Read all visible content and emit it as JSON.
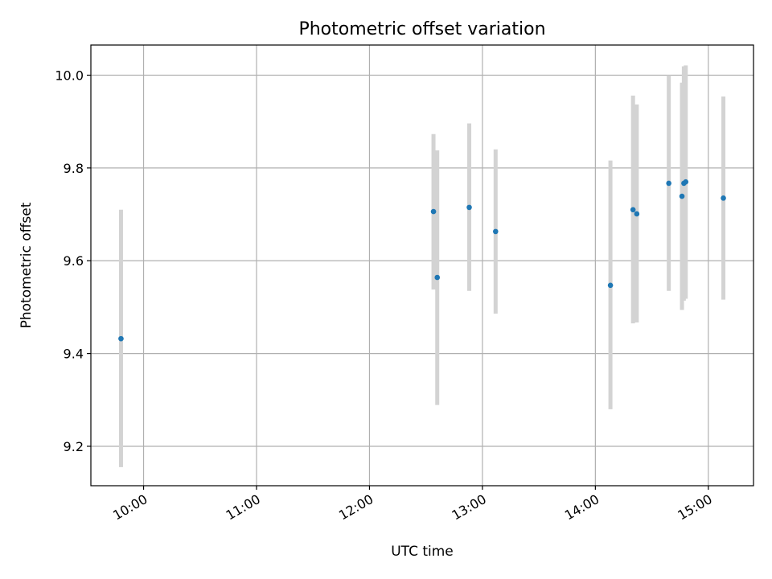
{
  "chart_data": {
    "type": "scatter",
    "title": "Photometric offset variation",
    "xlabel": "UTC time",
    "ylabel": "Photometric offset",
    "x_axis": "time",
    "xlim": [
      "09:32",
      "15:24"
    ],
    "ylim": [
      9.115,
      10.065
    ],
    "x_ticks": [
      "10:00",
      "11:00",
      "12:00",
      "13:00",
      "14:00",
      "15:00"
    ],
    "y_ticks": [
      9.2,
      9.4,
      9.6,
      9.8,
      10.0
    ],
    "y_tick_labels": [
      "9.2",
      "9.4",
      "9.6",
      "9.8",
      "10.0"
    ],
    "grid": true,
    "colors": {
      "points": "#1f77b4",
      "errorbars": "#d3d3d3",
      "grid": "#b0b0b0"
    },
    "points": [
      {
        "time": "09:48",
        "y": 9.432,
        "ylow": 9.155,
        "yhigh": 9.71
      },
      {
        "time": "12:34",
        "y": 9.706,
        "ylow": 9.538,
        "yhigh": 9.873
      },
      {
        "time": "12:36",
        "y": 9.564,
        "ylow": 9.289,
        "yhigh": 9.838
      },
      {
        "time": "12:53",
        "y": 9.715,
        "ylow": 9.535,
        "yhigh": 9.896
      },
      {
        "time": "13:07",
        "y": 9.663,
        "ylow": 9.486,
        "yhigh": 9.84
      },
      {
        "time": "14:08",
        "y": 9.547,
        "ylow": 9.28,
        "yhigh": 9.816
      },
      {
        "time": "14:20",
        "y": 9.71,
        "ylow": 9.465,
        "yhigh": 9.956
      },
      {
        "time": "14:22",
        "y": 9.701,
        "ylow": 9.467,
        "yhigh": 9.937
      },
      {
        "time": "14:39",
        "y": 9.767,
        "ylow": 9.535,
        "yhigh": 10.0
      },
      {
        "time": "14:46",
        "y": 9.739,
        "ylow": 9.494,
        "yhigh": 9.984
      },
      {
        "time": "14:47",
        "y": 9.767,
        "ylow": 9.514,
        "yhigh": 10.019
      },
      {
        "time": "14:48",
        "y": 9.77,
        "ylow": 9.518,
        "yhigh": 10.021
      },
      {
        "time": "15:08",
        "y": 9.735,
        "ylow": 9.516,
        "yhigh": 9.954
      }
    ]
  }
}
